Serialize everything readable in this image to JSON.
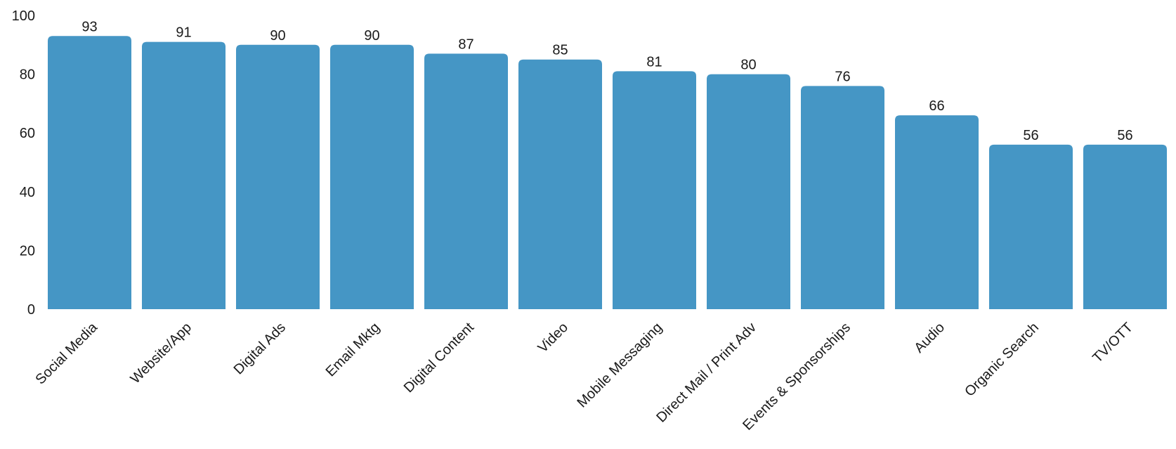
{
  "chart_data": {
    "type": "bar",
    "title": "",
    "xlabel": "",
    "ylabel": "",
    "ylim": [
      0,
      100
    ],
    "yticks": [
      "0",
      "20",
      "40",
      "60",
      "80",
      "100"
    ],
    "grid": false,
    "bar_color": "#4596c5",
    "categories": [
      "Social Media",
      "Website/App",
      "Digital Ads",
      "Email Mktg",
      "Digital Content",
      "Video",
      "Mobile Messaging",
      "Direct Mail / Print Adv",
      "Events & Sponsorships",
      "Audio",
      "Organic Search",
      "TV/OTT"
    ],
    "values": [
      93,
      91,
      90,
      90,
      87,
      85,
      81,
      80,
      76,
      66,
      56,
      56
    ]
  }
}
